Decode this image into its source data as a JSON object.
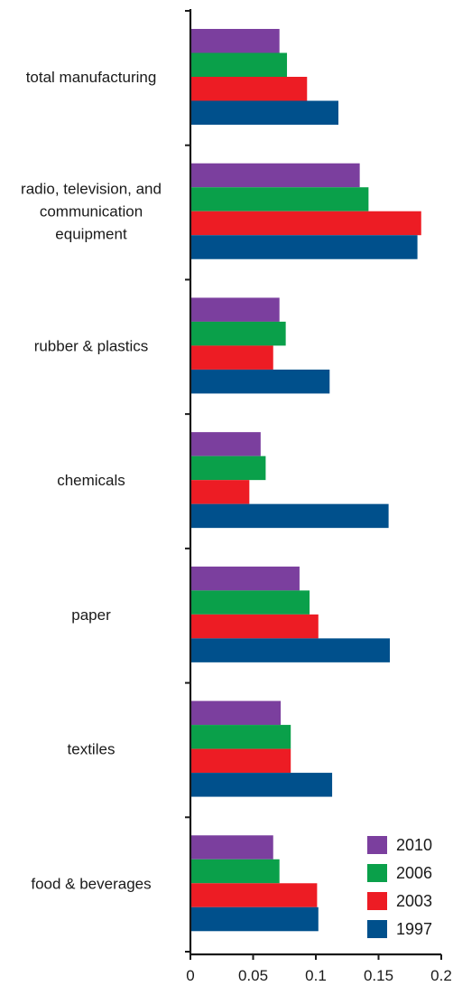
{
  "chart_data": {
    "type": "bar",
    "orientation": "horizontal",
    "categories": [
      [
        "total manufacturing"
      ],
      [
        "radio, television, and",
        "communication",
        "equipment"
      ],
      [
        "rubber & plastics"
      ],
      [
        "chemicals"
      ],
      [
        "paper"
      ],
      [
        "textiles"
      ],
      [
        "food & beverages"
      ]
    ],
    "series": [
      {
        "name": "2010",
        "color": "#7b3f9e",
        "values": [
          0.071,
          0.135,
          0.071,
          0.056,
          0.087,
          0.072,
          0.066
        ]
      },
      {
        "name": "2006",
        "color": "#0aa04a",
        "values": [
          0.077,
          0.142,
          0.076,
          0.06,
          0.095,
          0.08,
          0.071
        ]
      },
      {
        "name": "2003",
        "color": "#ed1c24",
        "values": [
          0.093,
          0.184,
          0.066,
          0.047,
          0.102,
          0.08,
          0.101
        ]
      },
      {
        "name": "1997",
        "color": "#00508c",
        "values": [
          0.118,
          0.181,
          0.111,
          0.158,
          0.159,
          0.113,
          0.102
        ]
      }
    ],
    "xlim": [
      0,
      0.2
    ],
    "xticks": [
      0,
      0.05,
      0.1,
      0.15,
      0.2
    ],
    "xtick_labels": [
      "0",
      "0.05",
      "0.1",
      "0.15",
      "0.2"
    ],
    "title": "",
    "xlabel": "",
    "ylabel": "",
    "grid": false,
    "legend_position": "bottom-right"
  }
}
